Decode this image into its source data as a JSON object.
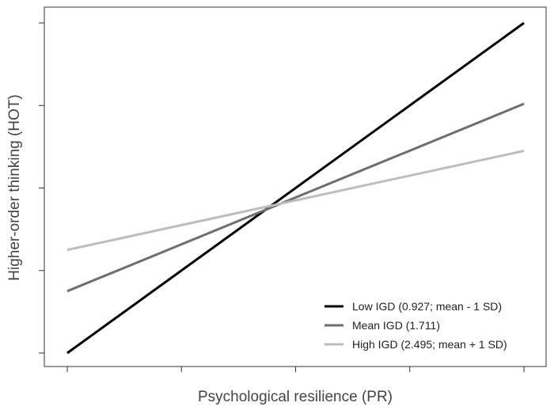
{
  "chart_data": {
    "type": "line",
    "title": "",
    "xlabel": "Psychological resilience (PR)",
    "ylabel": "Higher-order thinking (HOT)",
    "x": [
      -1,
      1
    ],
    "xlim": [
      -1.0,
      1.0
    ],
    "ylim": [
      0.0,
      4.0
    ],
    "x_tick_labels_shown": false,
    "y_tick_labels_shown": false,
    "grid": false,
    "legend_position": "bottom-right",
    "series": [
      {
        "name": "Low IGD (0.927; mean - 1 SD)",
        "values": [
          0.0,
          4.0
        ],
        "color": "#000000"
      },
      {
        "name": "Mean IGD (1.711)",
        "values": [
          0.75,
          3.02
        ],
        "color": "#6e6e6e"
      },
      {
        "name": "High IGD (2.495; mean + 1 SD)",
        "values": [
          1.25,
          2.45
        ],
        "color": "#bdbdbd"
      }
    ]
  }
}
